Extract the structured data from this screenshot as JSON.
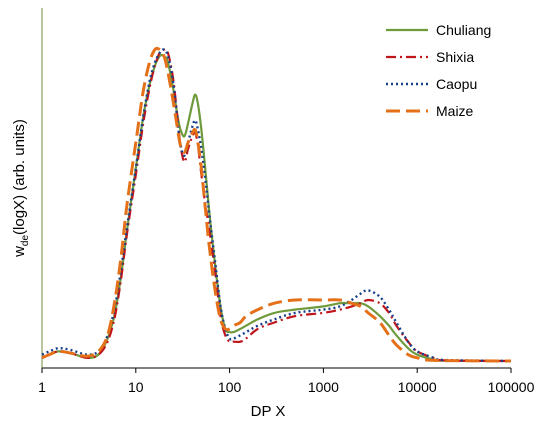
{
  "chart_data": {
    "type": "line",
    "xscale": "log",
    "xlim": [
      1,
      100000
    ],
    "ylim": [
      0,
      1.0
    ],
    "grid": false,
    "legend": "top-right",
    "xlabel": "DP X",
    "ylabel_main": "w",
    "ylabel_sub": "de",
    "ylabel_rest": "(logX) (arb. units)",
    "x_ticks": [
      1,
      10,
      100,
      1000,
      10000,
      100000
    ],
    "x_tick_labels": [
      "1",
      "10",
      "100",
      "1000",
      "10000",
      "100000"
    ],
    "series": [
      {
        "name": "Chuliang",
        "color": "#6f9a3c",
        "dash": "solid",
        "points": [
          [
            1,
            0.01
          ],
          [
            1.2,
            0.02
          ],
          [
            1.5,
            0.03
          ],
          [
            2,
            0.025
          ],
          [
            3,
            0.01
          ],
          [
            4,
            0.02
          ],
          [
            5,
            0.07
          ],
          [
            6,
            0.15
          ],
          [
            7,
            0.27
          ],
          [
            8,
            0.4
          ],
          [
            10,
            0.6
          ],
          [
            12,
            0.76
          ],
          [
            14,
            0.86
          ],
          [
            16,
            0.92
          ],
          [
            18,
            0.95
          ],
          [
            20,
            0.95
          ],
          [
            22,
            0.93
          ],
          [
            25,
            0.85
          ],
          [
            28,
            0.76
          ],
          [
            30,
            0.72
          ],
          [
            33,
            0.7
          ],
          [
            36,
            0.74
          ],
          [
            40,
            0.8
          ],
          [
            43,
            0.83
          ],
          [
            46,
            0.8
          ],
          [
            50,
            0.72
          ],
          [
            55,
            0.6
          ],
          [
            60,
            0.48
          ],
          [
            70,
            0.3
          ],
          [
            80,
            0.17
          ],
          [
            90,
            0.1
          ],
          [
            100,
            0.09
          ],
          [
            110,
            0.09
          ],
          [
            130,
            0.1
          ],
          [
            150,
            0.11
          ],
          [
            200,
            0.13
          ],
          [
            300,
            0.15
          ],
          [
            500,
            0.16
          ],
          [
            1000,
            0.17
          ],
          [
            1500,
            0.18
          ],
          [
            2000,
            0.18
          ],
          [
            2500,
            0.18
          ],
          [
            3000,
            0.17
          ],
          [
            4000,
            0.14
          ],
          [
            5000,
            0.11
          ],
          [
            6000,
            0.08
          ],
          [
            8000,
            0.04
          ],
          [
            10000,
            0.02
          ],
          [
            15000,
            0.005
          ],
          [
            20000,
            0.001
          ],
          [
            100000,
            0.0
          ]
        ]
      },
      {
        "name": "Shixia",
        "color": "#c0161b",
        "dash": "dashdot",
        "points": [
          [
            1,
            0.01
          ],
          [
            1.2,
            0.02
          ],
          [
            1.5,
            0.03
          ],
          [
            2,
            0.025
          ],
          [
            3,
            0.01
          ],
          [
            4,
            0.02
          ],
          [
            5,
            0.06
          ],
          [
            6,
            0.14
          ],
          [
            7,
            0.26
          ],
          [
            8,
            0.39
          ],
          [
            10,
            0.58
          ],
          [
            12,
            0.74
          ],
          [
            14,
            0.85
          ],
          [
            16,
            0.92
          ],
          [
            18,
            0.96
          ],
          [
            20,
            0.97
          ],
          [
            22,
            0.96
          ],
          [
            25,
            0.88
          ],
          [
            28,
            0.75
          ],
          [
            30,
            0.67
          ],
          [
            33,
            0.62
          ],
          [
            36,
            0.66
          ],
          [
            40,
            0.7
          ],
          [
            43,
            0.71
          ],
          [
            46,
            0.67
          ],
          [
            50,
            0.58
          ],
          [
            55,
            0.49
          ],
          [
            60,
            0.42
          ],
          [
            70,
            0.28
          ],
          [
            80,
            0.14
          ],
          [
            90,
            0.08
          ],
          [
            100,
            0.06
          ],
          [
            110,
            0.06
          ],
          [
            130,
            0.06
          ],
          [
            150,
            0.07
          ],
          [
            200,
            0.1
          ],
          [
            300,
            0.12
          ],
          [
            500,
            0.14
          ],
          [
            1000,
            0.15
          ],
          [
            1500,
            0.16
          ],
          [
            2000,
            0.17
          ],
          [
            2500,
            0.18
          ],
          [
            3000,
            0.19
          ],
          [
            4000,
            0.18
          ],
          [
            5000,
            0.15
          ],
          [
            6000,
            0.11
          ],
          [
            8000,
            0.06
          ],
          [
            10000,
            0.03
          ],
          [
            15000,
            0.01
          ],
          [
            20000,
            0.002
          ],
          [
            100000,
            0.0
          ]
        ]
      },
      {
        "name": "Caopu",
        "color": "#17408b",
        "dash": "dotted",
        "points": [
          [
            1,
            0.02
          ],
          [
            1.2,
            0.03
          ],
          [
            1.5,
            0.04
          ],
          [
            2,
            0.035
          ],
          [
            3,
            0.02
          ],
          [
            4,
            0.03
          ],
          [
            5,
            0.08
          ],
          [
            6,
            0.17
          ],
          [
            7,
            0.29
          ],
          [
            8,
            0.41
          ],
          [
            10,
            0.6
          ],
          [
            12,
            0.76
          ],
          [
            14,
            0.87
          ],
          [
            16,
            0.93
          ],
          [
            18,
            0.96
          ],
          [
            20,
            0.97
          ],
          [
            22,
            0.95
          ],
          [
            25,
            0.87
          ],
          [
            28,
            0.74
          ],
          [
            30,
            0.67
          ],
          [
            33,
            0.64
          ],
          [
            36,
            0.68
          ],
          [
            40,
            0.73
          ],
          [
            43,
            0.75
          ],
          [
            46,
            0.72
          ],
          [
            50,
            0.66
          ],
          [
            55,
            0.57
          ],
          [
            60,
            0.47
          ],
          [
            70,
            0.31
          ],
          [
            80,
            0.17
          ],
          [
            90,
            0.1
          ],
          [
            100,
            0.07
          ],
          [
            110,
            0.07
          ],
          [
            130,
            0.08
          ],
          [
            150,
            0.09
          ],
          [
            200,
            0.11
          ],
          [
            300,
            0.13
          ],
          [
            500,
            0.15
          ],
          [
            1000,
            0.16
          ],
          [
            1500,
            0.17
          ],
          [
            2000,
            0.19
          ],
          [
            2500,
            0.21
          ],
          [
            3000,
            0.22
          ],
          [
            4000,
            0.2
          ],
          [
            5000,
            0.16
          ],
          [
            6000,
            0.12
          ],
          [
            8000,
            0.06
          ],
          [
            10000,
            0.03
          ],
          [
            15000,
            0.01
          ],
          [
            20000,
            0.003
          ],
          [
            100000,
            0.0
          ]
        ]
      },
      {
        "name": "Maize",
        "color": "#e4711a",
        "dash": "dashed",
        "points": [
          [
            1,
            0.01
          ],
          [
            1.2,
            0.02
          ],
          [
            1.5,
            0.03
          ],
          [
            2,
            0.025
          ],
          [
            3,
            0.015
          ],
          [
            4,
            0.03
          ],
          [
            5,
            0.08
          ],
          [
            6,
            0.19
          ],
          [
            7,
            0.33
          ],
          [
            8,
            0.48
          ],
          [
            10,
            0.68
          ],
          [
            12,
            0.84
          ],
          [
            14,
            0.93
          ],
          [
            16,
            0.97
          ],
          [
            18,
            0.97
          ],
          [
            20,
            0.95
          ],
          [
            22,
            0.9
          ],
          [
            25,
            0.81
          ],
          [
            28,
            0.72
          ],
          [
            30,
            0.67
          ],
          [
            33,
            0.65
          ],
          [
            36,
            0.68
          ],
          [
            40,
            0.71
          ],
          [
            43,
            0.72
          ],
          [
            46,
            0.68
          ],
          [
            50,
            0.6
          ],
          [
            55,
            0.48
          ],
          [
            60,
            0.37
          ],
          [
            70,
            0.22
          ],
          [
            80,
            0.13
          ],
          [
            90,
            0.1
          ],
          [
            100,
            0.1
          ],
          [
            110,
            0.11
          ],
          [
            130,
            0.12
          ],
          [
            150,
            0.14
          ],
          [
            200,
            0.16
          ],
          [
            300,
            0.18
          ],
          [
            500,
            0.19
          ],
          [
            1000,
            0.19
          ],
          [
            1500,
            0.19
          ],
          [
            2000,
            0.18
          ],
          [
            2500,
            0.17
          ],
          [
            3000,
            0.15
          ],
          [
            4000,
            0.12
          ],
          [
            5000,
            0.08
          ],
          [
            6000,
            0.05
          ],
          [
            8000,
            0.02
          ],
          [
            10000,
            0.01
          ],
          [
            15000,
            0.002
          ],
          [
            100000,
            0.0
          ]
        ]
      }
    ]
  }
}
